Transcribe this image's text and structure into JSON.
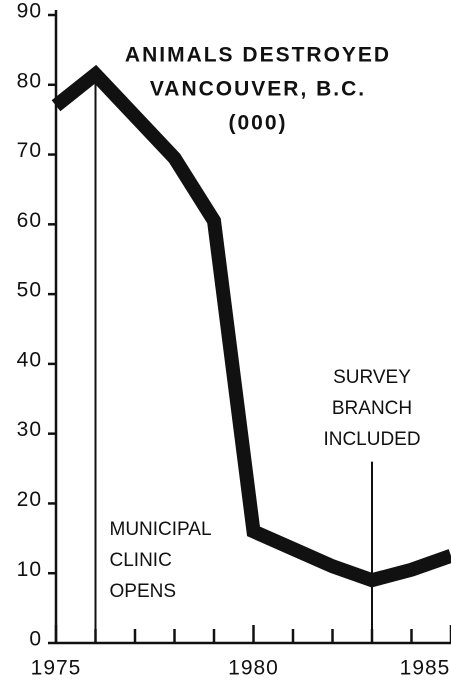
{
  "chart_data": {
    "type": "line",
    "title": [
      "ANIMALS DESTROYED",
      "VANCOUVER, B.C.",
      "(000)"
    ],
    "x": [
      1975,
      1976,
      1977,
      1978,
      1979,
      1980,
      1981,
      1982,
      1983,
      1984,
      1985
    ],
    "series": [
      {
        "color": "#111111",
        "values": [
          77,
          81.5,
          75.5,
          69.5,
          60.5,
          16,
          13.5,
          11,
          9,
          10.5,
          12.5
        ]
      }
    ],
    "xlim": [
      1975,
      1985
    ],
    "xticks": [
      1975,
      1980,
      1985
    ],
    "xminor_ticks": [
      1976,
      1977,
      1978,
      1979,
      1981,
      1982,
      1983,
      1984
    ],
    "ylim": [
      0,
      90
    ],
    "yticks": [
      0,
      10,
      20,
      30,
      40,
      50,
      60,
      70,
      80,
      90
    ],
    "annotations": [
      {
        "text": [
          "MUNICIPAL",
          "CLINIC",
          "OPENS"
        ],
        "x": 1976,
        "line_top": 81.5
      },
      {
        "text": [
          "SURVEY",
          "BRANCH",
          "INCLUDED"
        ],
        "x": 1983,
        "line_top": 26
      }
    ]
  }
}
